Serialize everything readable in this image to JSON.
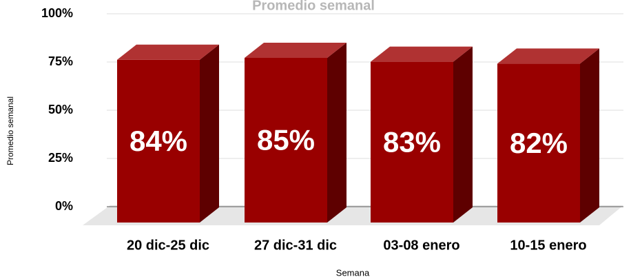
{
  "chart_data": {
    "type": "bar3d",
    "title": "Promedio semanal",
    "x_label": "Semana",
    "y_label": "Promedio semanal",
    "categories": [
      "20 dic-25 dic",
      "27 dic-31 dic",
      "03-08 enero",
      "10-15 enero"
    ],
    "values": [
      84,
      85,
      83,
      82
    ],
    "value_labels": [
      "84%",
      "85%",
      "83%",
      "82%"
    ],
    "color": "#990000",
    "ylim": [
      0,
      100
    ],
    "yticks": [
      {
        "value": 0,
        "label": "0%"
      },
      {
        "value": 25,
        "label": "25%"
      },
      {
        "value": 50,
        "label": "50%"
      },
      {
        "value": 75,
        "label": "75%"
      },
      {
        "value": 100,
        "label": "100%"
      }
    ],
    "grid": true
  }
}
